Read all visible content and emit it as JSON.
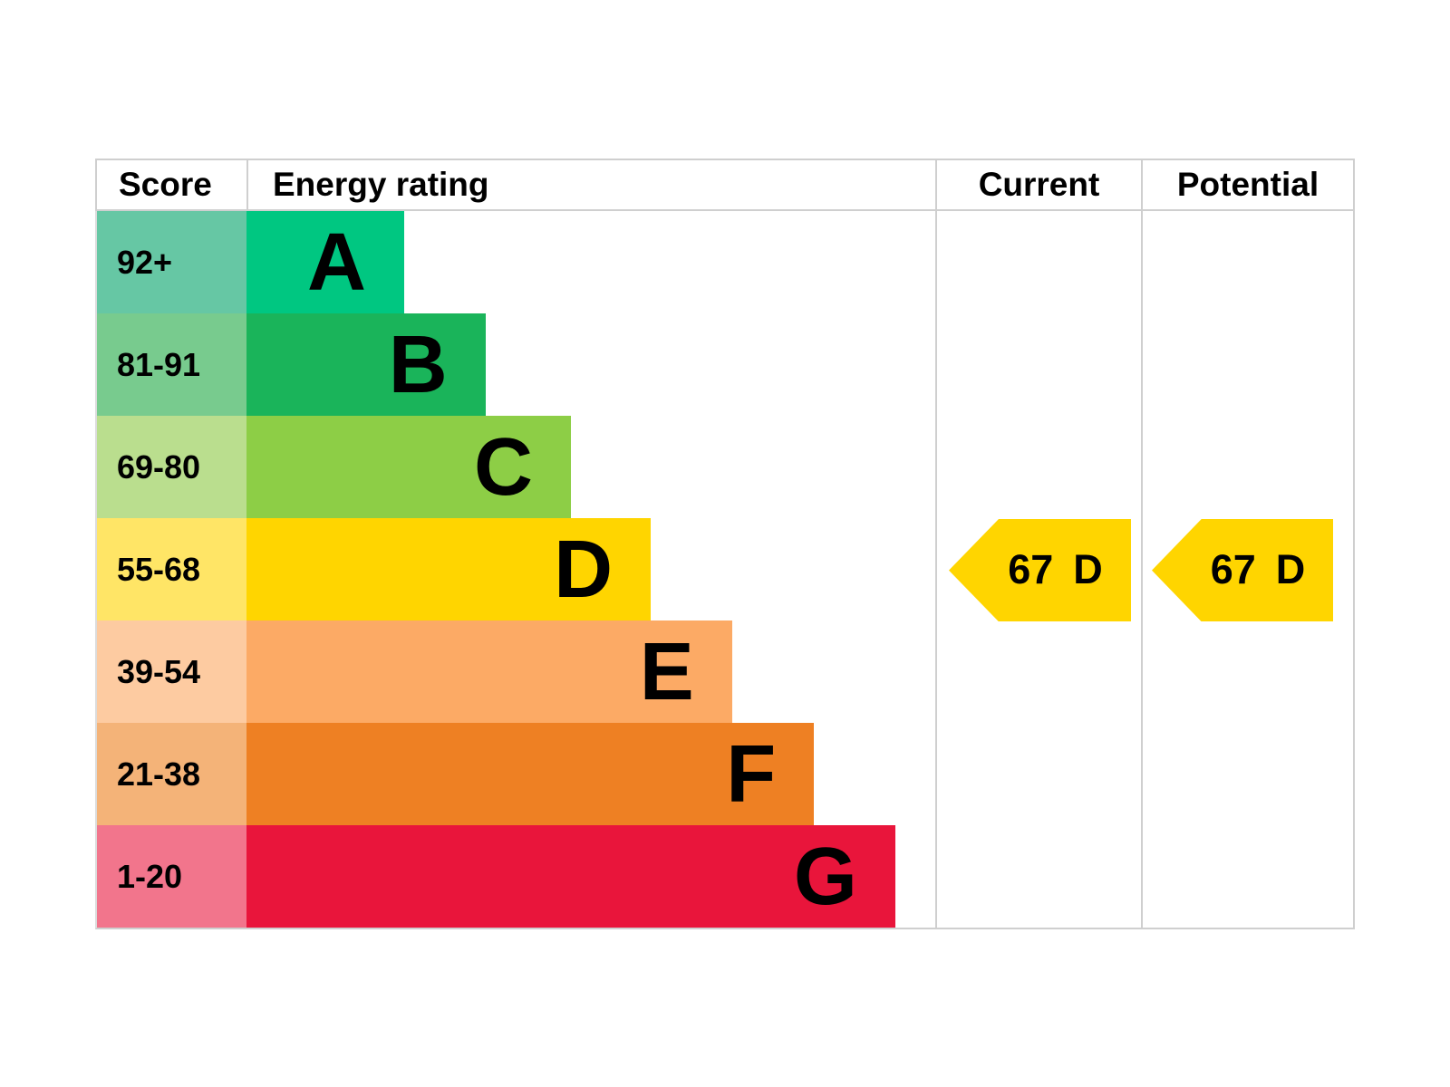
{
  "chart_data": {
    "type": "bar",
    "columns": {
      "score": "Score",
      "rating": "Energy rating",
      "current": "Current",
      "potential": "Potential"
    },
    "bands": [
      {
        "score_range": "92+",
        "letter": "A",
        "color": "#00c781",
        "tint": "#66c7a4",
        "width_pct": 22.9
      },
      {
        "score_range": "81-91",
        "letter": "B",
        "color": "#1ab45a",
        "tint": "#78cb8e",
        "width_pct": 34.7
      },
      {
        "score_range": "69-80",
        "letter": "C",
        "color": "#8dce46",
        "tint": "#bade8e",
        "width_pct": 47.1
      },
      {
        "score_range": "55-68",
        "letter": "D",
        "color": "#ffd500",
        "tint": "#ffe566",
        "width_pct": 58.7
      },
      {
        "score_range": "39-54",
        "letter": "E",
        "color": "#fcaa65",
        "tint": "#fdcba1",
        "width_pct": 70.5
      },
      {
        "score_range": "21-38",
        "letter": "F",
        "color": "#ee8023",
        "tint": "#f4b378",
        "width_pct": 82.4
      },
      {
        "score_range": "1-20",
        "letter": "G",
        "color": "#e9153b",
        "tint": "#f2758c",
        "width_pct": 94.2
      }
    ],
    "current": {
      "value": "67",
      "letter": "D",
      "color": "#ffd500"
    },
    "potential": {
      "value": "67",
      "letter": "D",
      "color": "#ffd500"
    }
  }
}
